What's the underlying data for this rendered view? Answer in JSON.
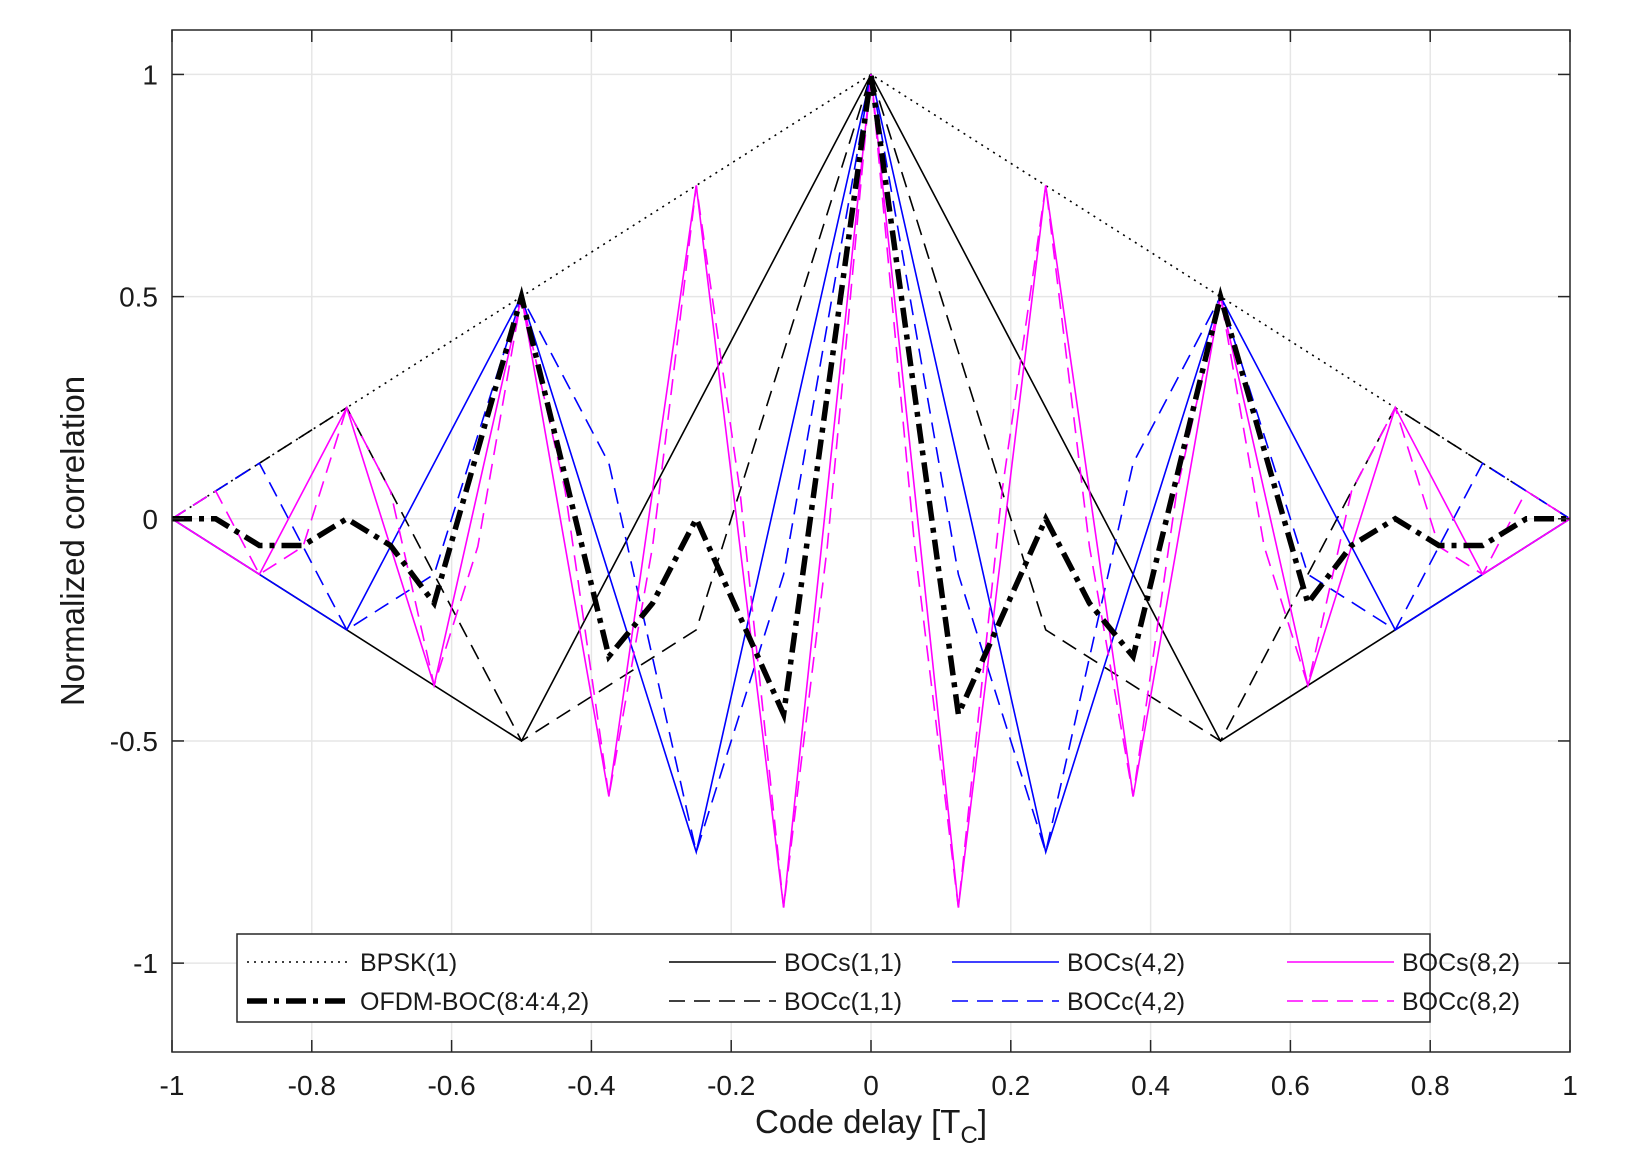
{
  "chart_data": {
    "type": "line",
    "title": "",
    "xlabel": "Code delay [T",
    "xlabel_sub": "C",
    "xlabel_end": "]",
    "ylabel": "Normalized correlation",
    "xlim": [
      -1,
      1
    ],
    "ylim": [
      -1.2,
      1.1
    ],
    "xticks": [
      -1,
      -0.8,
      -0.6,
      -0.4,
      -0.2,
      0,
      0.2,
      0.4,
      0.6,
      0.8,
      1
    ],
    "xtick_labels": [
      "-1",
      "-0.8",
      "-0.6",
      "-0.4",
      "-0.2",
      "0",
      "0.2",
      "0.4",
      "0.6",
      "0.8",
      "1"
    ],
    "yticks": [
      -1,
      -0.5,
      0,
      0.5,
      1
    ],
    "ytick_labels": [
      "-1",
      "-0.5",
      "0",
      "0.5",
      "1"
    ],
    "grid": true,
    "legend_position": "bottom",
    "series": [
      {
        "name": "BPSK(1)",
        "color": "#000000",
        "style": "dotted",
        "x": [
          -1,
          0,
          1
        ],
        "y": [
          0,
          1,
          0
        ]
      },
      {
        "name": "OFDM-BOC(8:4:4,2)",
        "color": "#000000",
        "style": "dashdot-thick",
        "x": [
          -1,
          -0.9375,
          -0.875,
          -0.8125,
          -0.75,
          -0.6875,
          -0.625,
          -0.5,
          -0.375,
          -0.3125,
          -0.25,
          -0.125,
          0,
          0.125,
          0.25,
          0.3125,
          0.375,
          0.5,
          0.625,
          0.6875,
          0.75,
          0.8125,
          0.875,
          0.9375,
          1
        ],
        "y": [
          0,
          0,
          -0.06,
          -0.06,
          0,
          -0.06,
          -0.19,
          0.5,
          -0.31,
          -0.19,
          0,
          -0.44,
          1,
          -0.44,
          0,
          -0.19,
          -0.31,
          0.5,
          -0.19,
          -0.06,
          0,
          -0.06,
          -0.06,
          0,
          0
        ]
      },
      {
        "name": "BOCs(1,1)",
        "color": "#000000",
        "style": "solid",
        "x": [
          -1,
          -0.5,
          0,
          0.5,
          1
        ],
        "y": [
          0,
          -0.5,
          1,
          -0.5,
          0
        ]
      },
      {
        "name": "BOCc(1,1)",
        "color": "#000000",
        "style": "dashed",
        "x": [
          -1,
          -0.75,
          -0.5,
          -0.25,
          0,
          0.25,
          0.5,
          0.75,
          1
        ],
        "y": [
          0,
          0.25,
          -0.5,
          -0.25,
          1,
          -0.25,
          -0.5,
          0.25,
          0
        ]
      },
      {
        "name": "BOCs(4,2)",
        "color": "#0000ff",
        "style": "solid",
        "x": [
          -1,
          -0.75,
          -0.5,
          -0.25,
          0,
          0.25,
          0.5,
          0.75,
          1
        ],
        "y": [
          0,
          -0.25,
          0.5,
          -0.75,
          1,
          -0.75,
          0.5,
          -0.25,
          0
        ]
      },
      {
        "name": "BOCc(4,2)",
        "color": "#0000ff",
        "style": "dashed",
        "x": [
          -1,
          -0.875,
          -0.75,
          -0.625,
          -0.5,
          -0.375,
          -0.25,
          -0.125,
          0,
          0.125,
          0.25,
          0.375,
          0.5,
          0.625,
          0.75,
          0.875,
          1
        ],
        "y": [
          0,
          0.125,
          -0.25,
          -0.125,
          0.5,
          0.125,
          -0.75,
          -0.125,
          1,
          -0.125,
          -0.75,
          0.125,
          0.5,
          -0.125,
          -0.25,
          0.125,
          0
        ]
      },
      {
        "name": "BOCs(8,2)",
        "color": "#ff00ff",
        "style": "solid",
        "x": [
          -1,
          -0.875,
          -0.75,
          -0.625,
          -0.5,
          -0.375,
          -0.25,
          -0.125,
          0,
          0.125,
          0.25,
          0.375,
          0.5,
          0.625,
          0.75,
          0.875,
          1
        ],
        "y": [
          0,
          -0.125,
          0.25,
          -0.375,
          0.5,
          -0.625,
          0.75,
          -0.875,
          1,
          -0.875,
          0.75,
          -0.625,
          0.5,
          -0.375,
          0.25,
          -0.125,
          0
        ]
      },
      {
        "name": "BOCc(8,2)",
        "color": "#ff00ff",
        "style": "dashed",
        "x": [
          -1,
          -0.9375,
          -0.875,
          -0.8125,
          -0.75,
          -0.6875,
          -0.625,
          -0.5625,
          -0.5,
          -0.4375,
          -0.375,
          -0.3125,
          -0.25,
          -0.1875,
          -0.125,
          -0.0625,
          0,
          0.0625,
          0.125,
          0.1875,
          0.25,
          0.3125,
          0.375,
          0.4375,
          0.5,
          0.5625,
          0.625,
          0.6875,
          0.75,
          0.8125,
          0.875,
          0.9375,
          1
        ],
        "y": [
          0,
          0.0625,
          -0.125,
          -0.0625,
          0.25,
          0.0625,
          -0.375,
          -0.0625,
          0.5,
          0.0625,
          -0.625,
          -0.0625,
          0.75,
          0.0625,
          -0.875,
          -0.0625,
          1,
          -0.0625,
          -0.875,
          0.0625,
          0.75,
          -0.0625,
          -0.625,
          0.0625,
          0.5,
          -0.0625,
          -0.375,
          0.0625,
          0.25,
          -0.0625,
          -0.125,
          0.0625,
          0
        ]
      }
    ],
    "legend_rows": [
      [
        "BPSK(1)",
        "BOCs(1,1)",
        "BOCs(4,2)",
        "BOCs(8,2)"
      ],
      [
        "OFDM-BOC(8:4:4,2)",
        "BOCc(1,1)",
        "BOCc(4,2)",
        "BOCc(8,2)"
      ]
    ]
  }
}
